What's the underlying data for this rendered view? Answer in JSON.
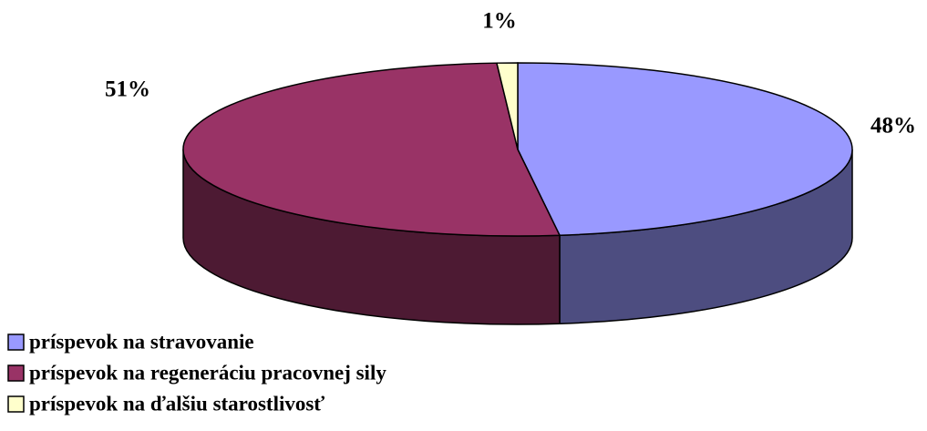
{
  "chart_data": {
    "type": "pie3d",
    "categories": [
      "príspevok na stravovanie",
      "príspevok na regeneráciu pracovnej sily",
      "príspevok na ďalšiu starostlivosť"
    ],
    "values": [
      48,
      51,
      1
    ],
    "value_labels": [
      "48%",
      "51%",
      "1%"
    ],
    "colors": [
      "#9999ff",
      "#993366",
      "#ffffcc"
    ],
    "legend": "bottom-left"
  }
}
